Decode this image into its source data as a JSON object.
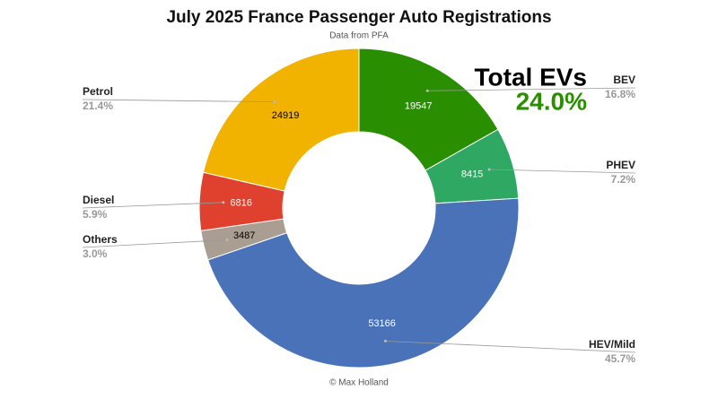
{
  "chart_data": {
    "type": "pie",
    "title": "July 2025 France Passenger Auto Registrations",
    "subtitle": "Data from PFA",
    "credit": "© Max Holland",
    "annotation": {
      "title": "Total EVs",
      "value": "24.0%"
    },
    "categories": [
      "BEV",
      "PHEV",
      "HEV/Mild",
      "Others",
      "Diesel",
      "Petrol"
    ],
    "values": [
      19547,
      8415,
      53166,
      3487,
      6816,
      24919
    ],
    "percent_labels": [
      "16.8%",
      "7.2%",
      "45.7%",
      "3.0%",
      "5.9%",
      "21.4%"
    ],
    "colors": [
      "#2a8f00",
      "#2ea862",
      "#4a72b8",
      "#aa9d92",
      "#e0412f",
      "#f2b200"
    ]
  }
}
